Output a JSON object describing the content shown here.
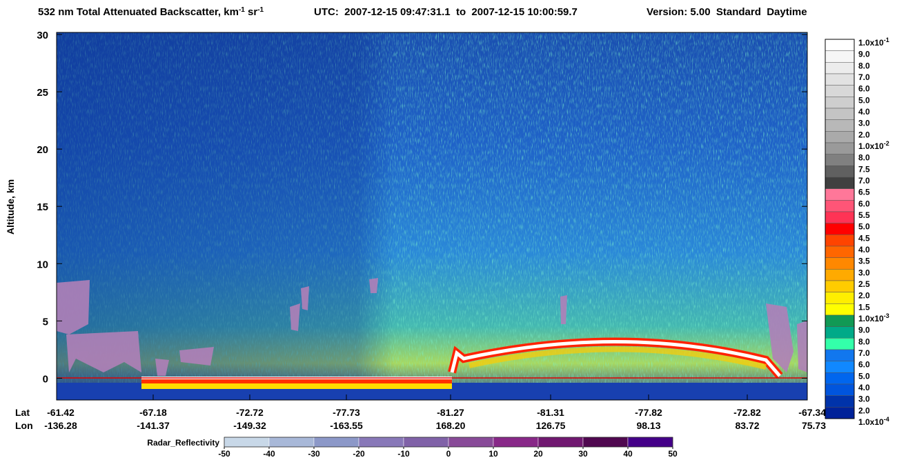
{
  "chart_data": {
    "type": "curtain",
    "title": [
      "532 nm Total Attenuated Backscatter, km",
      "-1",
      " sr",
      "-1"
    ],
    "time_range": "UTC:  2007-12-15 09:47:31.1  to  2007-12-15 10:00:59.7",
    "version": "Version: 5.00  Standard  Daytime",
    "y_label": "Altitude, km",
    "ylim": [
      -1.9,
      30
    ],
    "yticks": [
      0,
      5,
      10,
      15,
      20,
      25,
      30
    ],
    "x_labels": {
      "lat_name": "Lat",
      "lon_name": "Lon",
      "lat": [
        "-61.42",
        "-67.18",
        "-72.72",
        "-77.73",
        "-81.27",
        "-81.31",
        "-77.82",
        "-72.82",
        "-67.34"
      ],
      "lon": [
        "-136.28",
        "-141.37",
        "-149.32",
        "-163.55",
        "168.20",
        "126.75",
        "98.13",
        "83.72",
        "75.73"
      ]
    },
    "colorbar": {
      "labels": [
        {
          "text": "1.0x10",
          "sup": "-1"
        },
        "9.0",
        "8.0",
        "7.0",
        "6.0",
        "5.0",
        "4.0",
        "3.0",
        "2.0",
        {
          "text": "1.0x10",
          "sup": "-2"
        },
        "8.0",
        "7.5",
        "7.0",
        "6.5",
        "6.0",
        "5.5",
        "5.0",
        "4.5",
        "4.0",
        "3.5",
        "3.0",
        "2.5",
        "2.0",
        "1.5",
        {
          "text": "1.0x10",
          "sup": "-3"
        },
        "9.0",
        "8.0",
        "7.0",
        "6.0",
        "5.0",
        "4.0",
        "3.0",
        "2.0",
        {
          "text": "1.0x10",
          "sup": "-4"
        }
      ],
      "colors": [
        "#ffffff",
        "#f6f6f6",
        "#ececec",
        "#e2e2e2",
        "#d8d8d8",
        "#cecece",
        "#c4c4c4",
        "#b8b8b8",
        "#aaaaaa",
        "#9a9a9a",
        "#808080",
        "#606060",
        "#404040",
        "#ff7799",
        "#ff5577",
        "#ff3355",
        "#ff0000",
        "#ff4400",
        "#ff6600",
        "#ff8800",
        "#ffaa00",
        "#ffcc00",
        "#ffee00",
        "#ffff00",
        "#119955",
        "#00aa88",
        "#33ffaa",
        "#1177ee",
        "#1188ff",
        "#0066ee",
        "#0055dd",
        "#0033aa",
        "#002299"
      ]
    },
    "radar_colorbar": {
      "label": "Radar_Reflectivity",
      "ticks": [
        -50,
        -40,
        -30,
        -20,
        -10,
        0,
        10,
        20,
        30,
        40,
        50
      ],
      "colors": [
        "#c8d8e8",
        "#a8b8d8",
        "#8c98c8",
        "#8878b8",
        "#8062a8",
        "#884a98",
        "#882888",
        "#701870",
        "#500850",
        "#440088"
      ]
    }
  }
}
